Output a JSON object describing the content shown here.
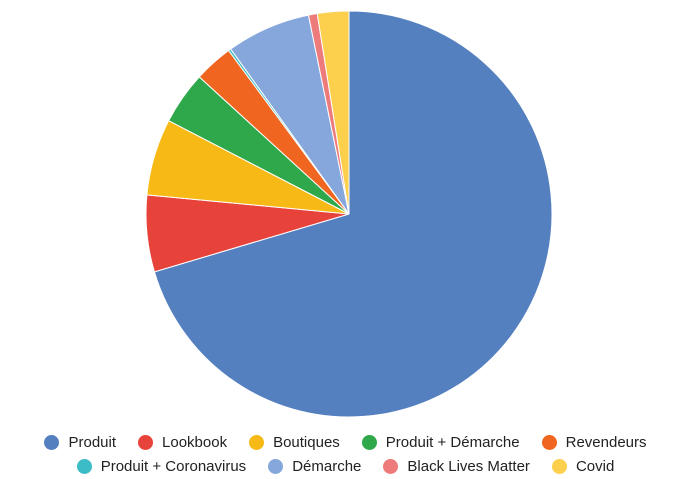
{
  "chart_data": {
    "type": "pie",
    "title": "",
    "start_angle_deg": 0,
    "direction": "clockwise",
    "slices": [
      {
        "label": "Produit",
        "value": 70.4,
        "color": "#5580c0"
      },
      {
        "label": "Lookbook",
        "value": 6.1,
        "color": "#e8433a"
      },
      {
        "label": "Boutiques",
        "value": 6.1,
        "color": "#f7b916"
      },
      {
        "label": "Produit + Démarche",
        "value": 4.2,
        "color": "#2ea84a"
      },
      {
        "label": "Revendeurs",
        "value": 3.1,
        "color": "#f0651f"
      },
      {
        "label": "Produit + Coronavirus",
        "value": 0.2,
        "color": "#3cbcc6"
      },
      {
        "label": "Démarche",
        "value": 6.7,
        "color": "#86a7dc"
      },
      {
        "label": "Black Lives Matter",
        "value": 0.7,
        "color": "#ee7b7b"
      },
      {
        "label": "Covid",
        "value": 2.5,
        "color": "#fccf4c"
      }
    ],
    "legend_position": "bottom"
  }
}
